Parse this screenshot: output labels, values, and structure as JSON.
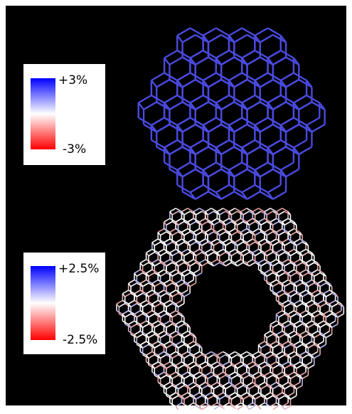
{
  "colorbars": [
    {
      "max_label": "+3%",
      "min_label": "-3%"
    },
    {
      "max_label": "+2.5%",
      "min_label": "-2.5%"
    }
  ]
}
